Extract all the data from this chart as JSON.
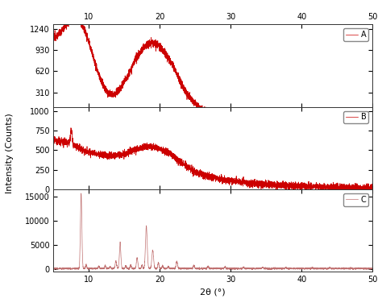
{
  "xlabel": "2θ (°)",
  "ylabel": "Intensity (Counts)",
  "xmin": 5,
  "xmax": 50,
  "panels": [
    {
      "label": "A",
      "ymin": 100,
      "ymax": 1300,
      "yticks": [
        310,
        620,
        930,
        1240
      ],
      "color": "#cc0000",
      "lw": 0.5
    },
    {
      "label": "B",
      "ymin": 0,
      "ymax": 1050,
      "yticks": [
        0,
        250,
        500,
        750,
        1000
      ],
      "color": "#cc0000",
      "lw": 0.5
    },
    {
      "label": "C",
      "ymin": -500,
      "ymax": 16500,
      "yticks": [
        0,
        5000,
        10000,
        15000
      ],
      "color": "#c07070",
      "lw": 0.5
    }
  ],
  "background_color": "#ffffff",
  "legend_fontsize": 7,
  "tick_fontsize": 7,
  "label_fontsize": 8
}
